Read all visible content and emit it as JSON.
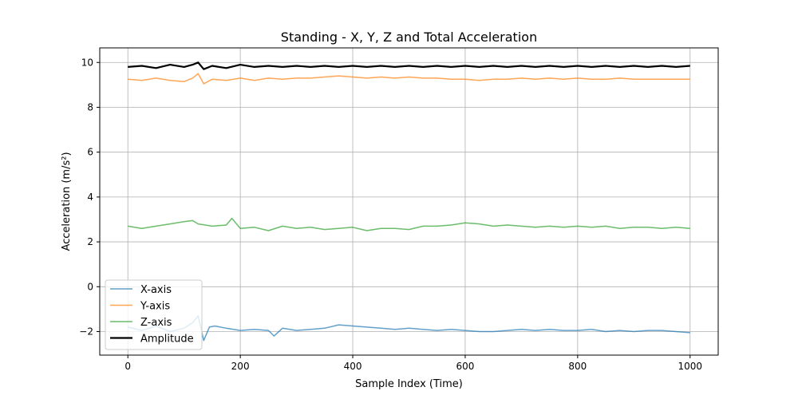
{
  "chart_data": {
    "type": "line",
    "title": "Standing - X, Y, Z and Total Acceleration",
    "xlabel": "Sample Index (Time)",
    "ylabel": "Acceleration (m/s²)",
    "xlim": [
      -50,
      1050
    ],
    "ylim": [
      -3.05,
      10.65
    ],
    "xticks": [
      0,
      200,
      400,
      600,
      800,
      1000
    ],
    "yticks": [
      -2,
      0,
      2,
      4,
      6,
      8,
      10
    ],
    "grid": true,
    "legend_position": "lower-left",
    "series": [
      {
        "name": "X-axis",
        "color": "#1f77b4",
        "x": [
          0,
          25,
          50,
          75,
          100,
          115,
          125,
          135,
          145,
          155,
          175,
          200,
          225,
          250,
          260,
          275,
          300,
          325,
          350,
          375,
          400,
          425,
          450,
          475,
          500,
          525,
          550,
          575,
          600,
          625,
          650,
          675,
          700,
          725,
          750,
          775,
          800,
          825,
          850,
          875,
          900,
          925,
          950,
          975,
          1000
        ],
        "y": [
          -1.8,
          -1.95,
          -1.75,
          -2.0,
          -1.85,
          -1.6,
          -1.3,
          -2.4,
          -1.8,
          -1.75,
          -1.85,
          -1.95,
          -1.9,
          -1.95,
          -2.2,
          -1.85,
          -1.95,
          -1.9,
          -1.85,
          -1.7,
          -1.75,
          -1.8,
          -1.85,
          -1.9,
          -1.85,
          -1.9,
          -1.95,
          -1.9,
          -1.95,
          -2.0,
          -2.0,
          -1.95,
          -1.9,
          -1.95,
          -1.9,
          -1.95,
          -1.95,
          -1.9,
          -2.0,
          -1.95,
          -2.0,
          -1.95,
          -1.95,
          -2.0,
          -2.05
        ]
      },
      {
        "name": "Y-axis",
        "color": "#ff7f0e",
        "x": [
          0,
          25,
          50,
          75,
          100,
          115,
          125,
          135,
          150,
          175,
          200,
          225,
          250,
          275,
          300,
          325,
          350,
          375,
          400,
          425,
          450,
          475,
          500,
          525,
          550,
          575,
          600,
          625,
          650,
          675,
          700,
          725,
          750,
          775,
          800,
          825,
          850,
          875,
          900,
          925,
          950,
          975,
          1000
        ],
        "y": [
          9.25,
          9.2,
          9.3,
          9.2,
          9.15,
          9.3,
          9.5,
          9.05,
          9.25,
          9.2,
          9.3,
          9.2,
          9.3,
          9.25,
          9.3,
          9.3,
          9.35,
          9.4,
          9.35,
          9.3,
          9.35,
          9.3,
          9.35,
          9.3,
          9.3,
          9.25,
          9.25,
          9.2,
          9.25,
          9.25,
          9.3,
          9.25,
          9.3,
          9.25,
          9.3,
          9.25,
          9.25,
          9.3,
          9.25,
          9.25,
          9.25,
          9.25,
          9.25
        ]
      },
      {
        "name": "Z-axis",
        "color": "#2ca02c",
        "x": [
          0,
          25,
          50,
          75,
          100,
          115,
          125,
          150,
          175,
          185,
          200,
          225,
          250,
          275,
          300,
          325,
          350,
          375,
          400,
          425,
          450,
          475,
          500,
          525,
          550,
          575,
          600,
          625,
          650,
          675,
          700,
          725,
          750,
          775,
          800,
          825,
          850,
          875,
          900,
          925,
          950,
          975,
          1000
        ],
        "y": [
          2.7,
          2.6,
          2.7,
          2.8,
          2.9,
          2.95,
          2.8,
          2.7,
          2.75,
          3.05,
          2.6,
          2.65,
          2.5,
          2.7,
          2.6,
          2.65,
          2.55,
          2.6,
          2.65,
          2.5,
          2.6,
          2.6,
          2.55,
          2.7,
          2.7,
          2.75,
          2.85,
          2.8,
          2.7,
          2.75,
          2.7,
          2.65,
          2.7,
          2.65,
          2.7,
          2.65,
          2.7,
          2.6,
          2.65,
          2.65,
          2.6,
          2.65,
          2.6
        ]
      },
      {
        "name": "Amplitude",
        "color": "#000000",
        "x": [
          0,
          25,
          50,
          75,
          100,
          115,
          125,
          135,
          150,
          175,
          200,
          225,
          250,
          275,
          300,
          325,
          350,
          375,
          400,
          425,
          450,
          475,
          500,
          525,
          550,
          575,
          600,
          625,
          650,
          675,
          700,
          725,
          750,
          775,
          800,
          825,
          850,
          875,
          900,
          925,
          950,
          975,
          1000
        ],
        "y": [
          9.8,
          9.85,
          9.75,
          9.9,
          9.8,
          9.9,
          10.0,
          9.7,
          9.85,
          9.75,
          9.9,
          9.8,
          9.85,
          9.8,
          9.85,
          9.8,
          9.85,
          9.8,
          9.85,
          9.8,
          9.85,
          9.8,
          9.85,
          9.8,
          9.85,
          9.8,
          9.85,
          9.8,
          9.85,
          9.8,
          9.85,
          9.8,
          9.85,
          9.8,
          9.85,
          9.8,
          9.85,
          9.8,
          9.85,
          9.8,
          9.85,
          9.8,
          9.85
        ]
      }
    ]
  }
}
